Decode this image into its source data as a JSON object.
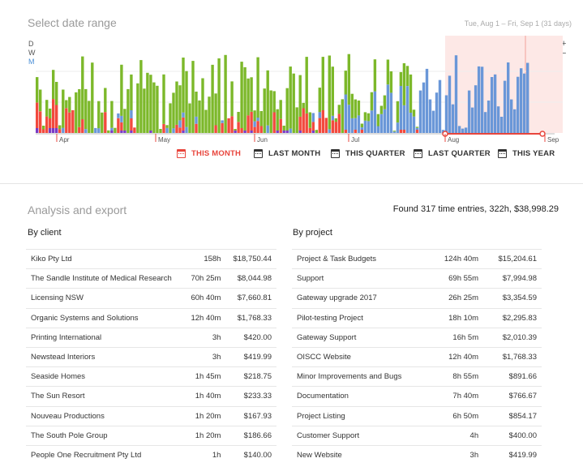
{
  "header": {
    "title": "Select date range",
    "range": "Tue, Aug 1 – Fri, Sep 1 (31 days)"
  },
  "granularity": {
    "d": "D",
    "w": "W",
    "m": "M",
    "active": "M"
  },
  "zoom": {
    "plus": "+",
    "minus": "−"
  },
  "timeline": {
    "months": [
      "Apr",
      "May",
      "Jun",
      "Jul",
      "Aug",
      "Sep"
    ],
    "colors": {
      "red": "#f24a3e",
      "green": "#7cb82a",
      "blue": "#6a97d8",
      "purple": "#7a3bc4",
      "selection": "#fde8e6",
      "accent": "#e8453c"
    },
    "selection": {
      "start": "Aug 1",
      "end": "Sep 1"
    },
    "bars": []
  },
  "quick_ranges": [
    {
      "label": "THIS MONTH",
      "active": true
    },
    {
      "label": "LAST MONTH",
      "active": false
    },
    {
      "label": "THIS QUARTER",
      "active": false
    },
    {
      "label": "LAST QUARTER",
      "active": false
    },
    {
      "label": "THIS YEAR",
      "active": false
    }
  ],
  "analysis": {
    "title": "Analysis and export",
    "found": "Found 317 time entries, 322h, $38,998.29",
    "by_client_title": "By client",
    "by_project_title": "By project",
    "clients": [
      {
        "name": "Kiko Pty Ltd",
        "hours": "158h",
        "amount": "$18,750.44"
      },
      {
        "name": "The Sandle Institute of Medical Research",
        "hours": "70h 25m",
        "amount": "$8,044.98"
      },
      {
        "name": "Licensing NSW",
        "hours": "60h 40m",
        "amount": "$7,660.81"
      },
      {
        "name": "Organic Systems and Solutions",
        "hours": "12h 40m",
        "amount": "$1,768.33"
      },
      {
        "name": "Printing International",
        "hours": "3h",
        "amount": "$420.00"
      },
      {
        "name": "Newstead Interiors",
        "hours": "3h",
        "amount": "$419.99"
      },
      {
        "name": "Seaside Homes",
        "hours": "1h 45m",
        "amount": "$218.75"
      },
      {
        "name": "The Sun Resort",
        "hours": "1h 40m",
        "amount": "$233.33"
      },
      {
        "name": "Nouveau Productions",
        "hours": "1h 20m",
        "amount": "$167.93"
      },
      {
        "name": "The South Pole Group",
        "hours": "1h 20m",
        "amount": "$186.66"
      },
      {
        "name": "People One Recruitment Pty Ltd",
        "hours": "1h",
        "amount": "$140.00"
      }
    ],
    "projects": [
      {
        "name": "Project & Task Budgets",
        "hours": "124h 40m",
        "amount": "$15,204.61"
      },
      {
        "name": "Support",
        "hours": "69h 55m",
        "amount": "$7,994.98"
      },
      {
        "name": "Gateway upgrade 2017",
        "hours": "26h 25m",
        "amount": "$3,354.59"
      },
      {
        "name": "Pilot-testing Project",
        "hours": "18h 10m",
        "amount": "$2,295.83"
      },
      {
        "name": "Gateway Support",
        "hours": "16h 5m",
        "amount": "$2,010.39"
      },
      {
        "name": "OISCC Website",
        "hours": "12h 40m",
        "amount": "$1,768.33"
      },
      {
        "name": "Minor Improvements and Bugs",
        "hours": "8h 55m",
        "amount": "$891.66"
      },
      {
        "name": "Documentation",
        "hours": "7h 40m",
        "amount": "$766.67"
      },
      {
        "name": "Project Listing",
        "hours": "6h 50m",
        "amount": "$854.17"
      },
      {
        "name": "Customer Support",
        "hours": "4h",
        "amount": "$400.00"
      },
      {
        "name": "New Website",
        "hours": "3h",
        "amount": "$419.99"
      }
    ]
  }
}
